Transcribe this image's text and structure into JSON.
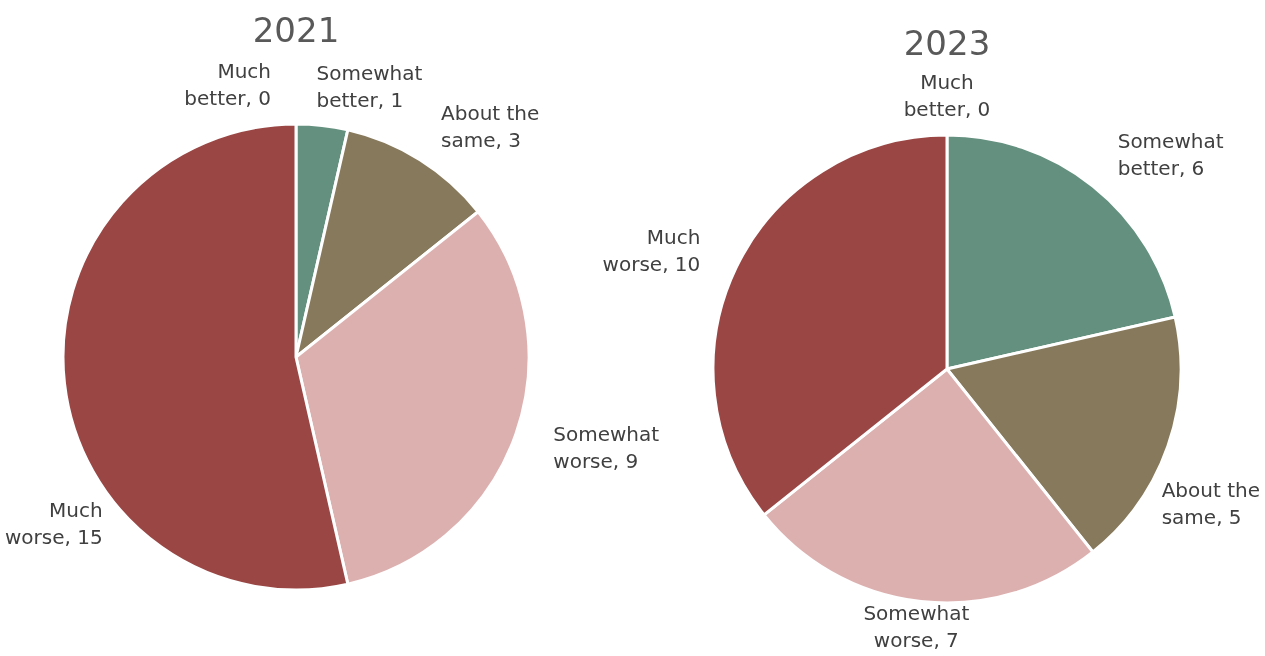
{
  "chart_data": [
    {
      "type": "pie",
      "title": "2021",
      "categories": [
        "Much better",
        "Somewhat better",
        "About the same",
        "Somewhat worse",
        "Much worse"
      ],
      "values": [
        0,
        1,
        3,
        9,
        15
      ],
      "colors": [
        "#3f6b5c",
        "#64907f",
        "#87795c",
        "#ddb0b0",
        "#994644"
      ],
      "value_labels": [
        ", 0",
        ", 1",
        ", 3",
        ", 9",
        ", 15"
      ]
    },
    {
      "type": "pie",
      "title": "2023",
      "categories": [
        "Much better",
        "Somewhat better",
        "About the same",
        "Somewhat worse",
        "Much worse"
      ],
      "values": [
        0,
        6,
        5,
        7,
        10
      ],
      "colors": [
        "#3f6b5c",
        "#64907f",
        "#87795c",
        "#ddb0b0",
        "#994644"
      ],
      "value_labels": [
        ", 0",
        ", 6",
        ", 5",
        ", 7",
        ", 10"
      ]
    }
  ]
}
